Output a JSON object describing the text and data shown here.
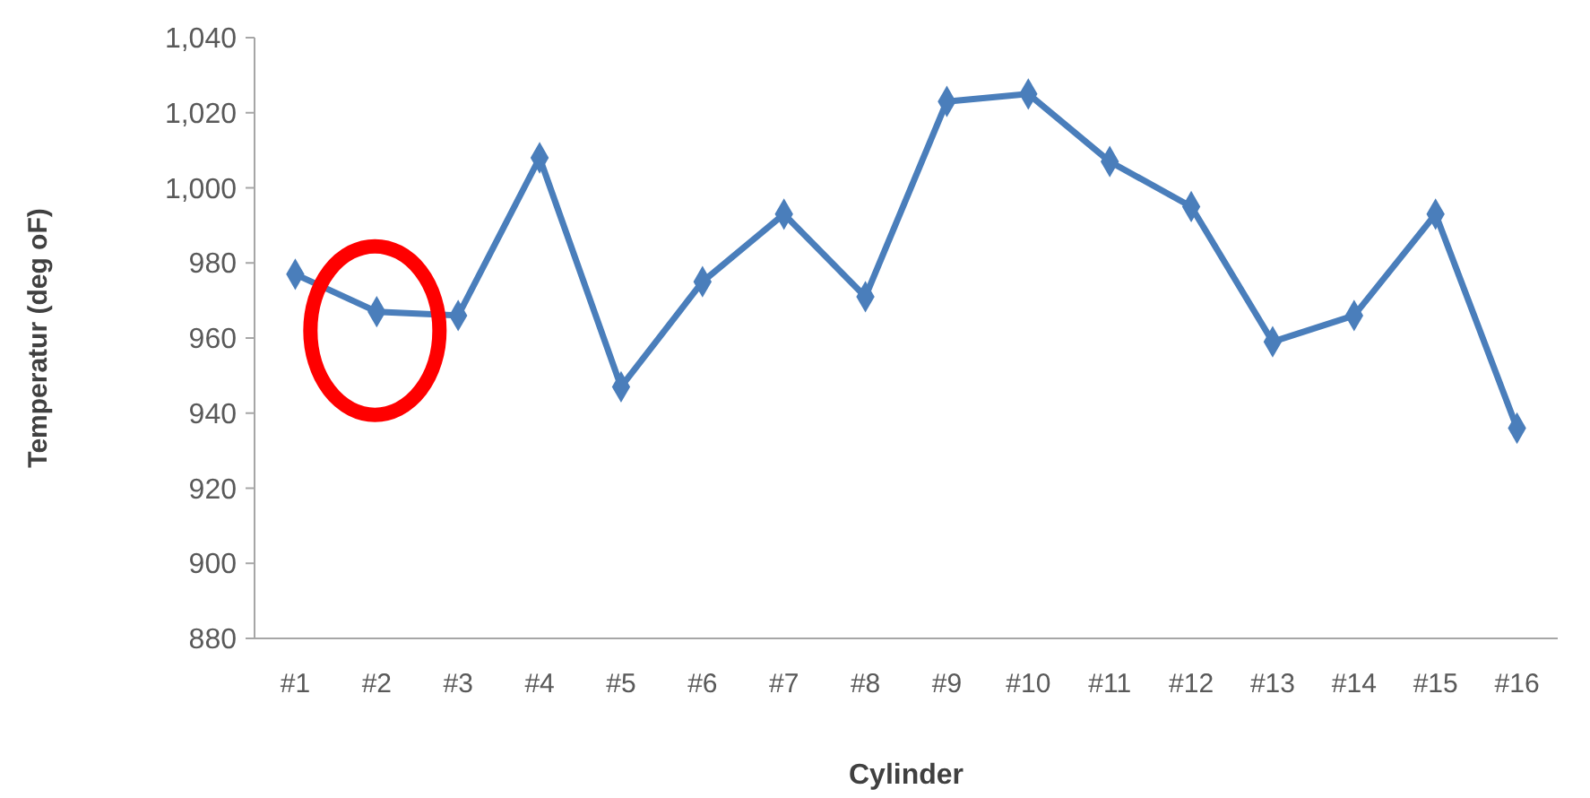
{
  "chart_data": {
    "type": "line",
    "xlabel": "Cylinder",
    "ylabel": "Temperatur (deg oF)",
    "categories": [
      "#1",
      "#2",
      "#3",
      "#4",
      "#5",
      "#6",
      "#7",
      "#8",
      "#9",
      "#10",
      "#11",
      "#12",
      "#13",
      "#14",
      "#15",
      "#16"
    ],
    "series": [
      {
        "color": "#4a7ebb",
        "values": [
          977,
          967,
          966,
          1008,
          947,
          975,
          993,
          971,
          1023,
          1025,
          1007,
          995,
          959,
          966,
          993,
          936
        ]
      }
    ],
    "ylim": [
      880,
      1040
    ],
    "yticks": [
      880,
      900,
      920,
      940,
      960,
      980,
      {
        "value": 1000,
        "label": "1,000"
      },
      {
        "value": 1020,
        "label": "1,020"
      },
      {
        "value": 1040,
        "label": "1,040"
      }
    ],
    "marker": "diamond",
    "grid": false
  }
}
